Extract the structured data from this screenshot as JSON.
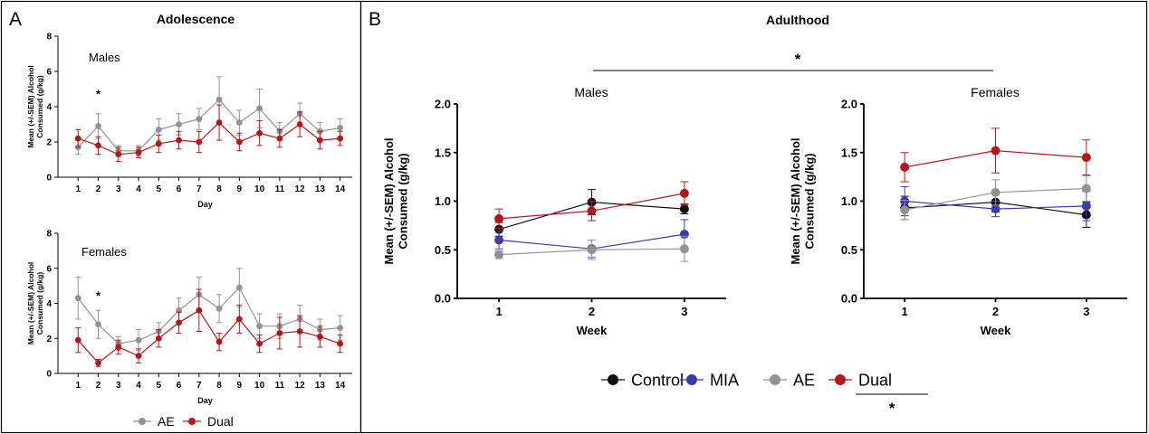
{
  "panels": {
    "A": {
      "letter": "A",
      "title": "Adolescence"
    },
    "B": {
      "letter": "B",
      "title": "Adulthood",
      "sig_mark": "*"
    }
  },
  "chart_data": [
    {
      "id": "adol-males",
      "type": "line",
      "title": "",
      "panel_label": "Males",
      "xlabel": "Day",
      "ylabel": "Mean (+/-SEM) Alcohol Consumed (g/kg)",
      "ylim": [
        0,
        8
      ],
      "yticks": [
        0,
        2,
        4,
        6,
        8
      ],
      "x": [
        1,
        2,
        3,
        4,
        5,
        6,
        7,
        8,
        9,
        10,
        11,
        12,
        13,
        14
      ],
      "annotations": [
        {
          "x": 2,
          "y": 4.5,
          "text": "*"
        }
      ],
      "series": [
        {
          "name": "AE",
          "color": "#929292",
          "values": [
            1.7,
            2.9,
            1.5,
            1.5,
            2.7,
            3.0,
            3.3,
            4.4,
            3.1,
            3.9,
            2.6,
            3.6,
            2.6,
            2.8
          ],
          "sem": [
            0.4,
            0.7,
            0.3,
            0.3,
            0.6,
            0.6,
            0.6,
            1.3,
            0.7,
            1.1,
            0.5,
            0.6,
            0.5,
            0.5
          ]
        },
        {
          "name": "Dual",
          "color": "#b5161b",
          "values": [
            2.2,
            1.8,
            1.3,
            1.4,
            1.9,
            2.1,
            2.0,
            3.1,
            2.0,
            2.5,
            2.2,
            3.0,
            2.1,
            2.2
          ],
          "sem": [
            0.5,
            0.5,
            0.4,
            0.3,
            0.5,
            0.5,
            0.6,
            1.0,
            0.5,
            0.7,
            0.5,
            0.7,
            0.5,
            0.4
          ]
        }
      ]
    },
    {
      "id": "adol-females",
      "type": "line",
      "title": "",
      "panel_label": "Females",
      "xlabel": "Day",
      "ylabel": "Mean (+/-SEM) Alcohol Consumed (g/kg)",
      "ylim": [
        0,
        8
      ],
      "yticks": [
        0,
        2,
        4,
        6,
        8
      ],
      "x": [
        1,
        2,
        3,
        4,
        5,
        6,
        7,
        8,
        9,
        10,
        11,
        12,
        13,
        14
      ],
      "annotations": [
        {
          "x": 2,
          "y": 4.2,
          "text": "*"
        }
      ],
      "series": [
        {
          "name": "AE",
          "color": "#929292",
          "values": [
            4.3,
            2.8,
            1.7,
            1.9,
            2.4,
            3.6,
            4.5,
            3.7,
            4.9,
            2.7,
            2.7,
            3.1,
            2.5,
            2.6
          ],
          "sem": [
            1.2,
            0.8,
            0.4,
            0.6,
            0.5,
            0.7,
            1.0,
            0.8,
            1.1,
            0.7,
            0.7,
            0.8,
            0.6,
            0.7
          ]
        },
        {
          "name": "Dual",
          "color": "#b5161b",
          "values": [
            1.9,
            0.6,
            1.5,
            1.0,
            2.0,
            2.9,
            3.6,
            1.8,
            3.1,
            1.7,
            2.3,
            2.4,
            2.1,
            1.7
          ],
          "sem": [
            0.7,
            0.2,
            0.4,
            0.4,
            0.5,
            0.6,
            1.2,
            0.5,
            0.8,
            0.5,
            0.9,
            0.9,
            0.6,
            0.5
          ]
        }
      ]
    },
    {
      "id": "adult-males",
      "type": "line",
      "title": "Males",
      "xlabel": "Week",
      "ylabel": "Mean (+/-SEM) Alcohol Consumed (g/kg)",
      "ylim": [
        0,
        2
      ],
      "yticks": [
        0.0,
        0.5,
        1.0,
        1.5,
        2.0
      ],
      "x": [
        1,
        2,
        3
      ],
      "series": [
        {
          "name": "Control",
          "color": "#111111",
          "values": [
            0.71,
            0.99,
            0.92
          ],
          "sem": [
            0.07,
            0.13,
            0.05
          ]
        },
        {
          "name": "MIA",
          "color": "#3a3aa8",
          "values": [
            0.6,
            0.51,
            0.66
          ],
          "sem": [
            0.09,
            0.09,
            0.15
          ]
        },
        {
          "name": "AE",
          "color": "#929292",
          "values": [
            0.45,
            0.5,
            0.51
          ],
          "sem": [
            0.04,
            0.1,
            0.13
          ]
        },
        {
          "name": "Dual",
          "color": "#b5161b",
          "values": [
            0.82,
            0.9,
            1.08
          ],
          "sem": [
            0.1,
            0.1,
            0.12
          ]
        }
      ]
    },
    {
      "id": "adult-females",
      "type": "line",
      "title": "Females",
      "xlabel": "Week",
      "ylabel": "Mean (+/-SEM) Alcohol Consumed (g/kg)",
      "ylim": [
        0,
        2
      ],
      "yticks": [
        0.0,
        0.5,
        1.0,
        1.5,
        2.0
      ],
      "x": [
        1,
        2,
        3
      ],
      "series": [
        {
          "name": "Control",
          "color": "#111111",
          "values": [
            0.93,
            0.99,
            0.86
          ],
          "sem": [
            0.12,
            0.1,
            0.13
          ]
        },
        {
          "name": "MIA",
          "color": "#3a3aa8",
          "values": [
            1.0,
            0.92,
            0.95
          ],
          "sem": [
            0.15,
            0.08,
            0.15
          ]
        },
        {
          "name": "AE",
          "color": "#929292",
          "values": [
            0.91,
            1.09,
            1.13
          ],
          "sem": [
            0.1,
            0.13,
            0.13
          ]
        },
        {
          "name": "Dual",
          "color": "#b5161b",
          "values": [
            1.35,
            1.52,
            1.45
          ],
          "sem": [
            0.15,
            0.23,
            0.18
          ]
        }
      ]
    }
  ],
  "legends": {
    "A": [
      {
        "name": "AE",
        "color": "#929292"
      },
      {
        "name": "Dual",
        "color": "#b5161b"
      }
    ],
    "B": [
      {
        "name": "Control",
        "color": "#111111"
      },
      {
        "name": "MIA",
        "color": "#3a3aa8"
      },
      {
        "name": "AE",
        "color": "#929292"
      },
      {
        "name": "Dual",
        "color": "#b5161b",
        "sig_mark": "*"
      }
    ]
  }
}
